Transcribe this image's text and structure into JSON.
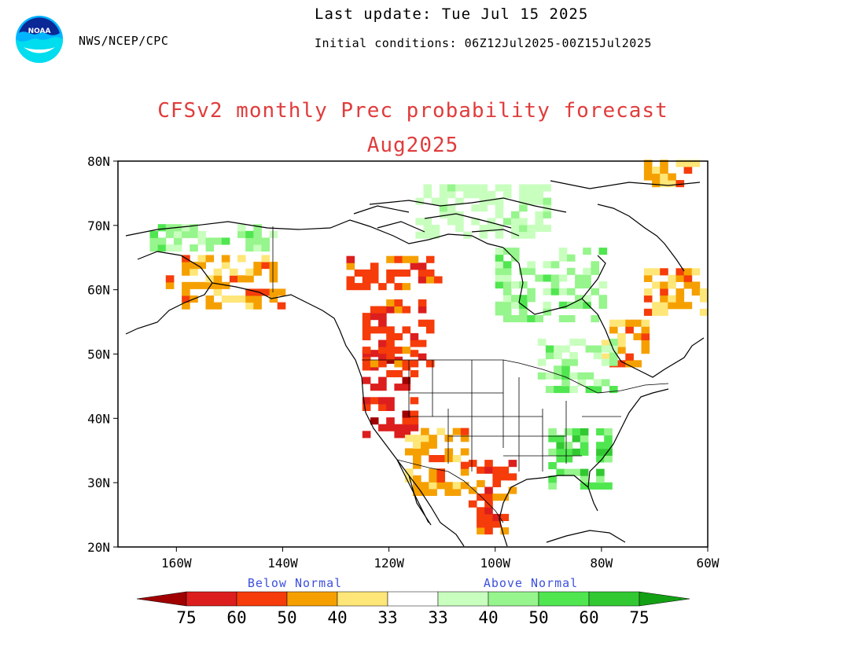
{
  "header": {
    "agency": "NWS/NCEP/CPC",
    "last_update": "Last update: Tue Jul 15 2025",
    "initial_conditions": "Initial conditions: 06Z12Jul2025-00Z15Jul2025",
    "logo_text": "NOAA"
  },
  "title": {
    "line1": "CFSv2 monthly Prec probability forecast",
    "line2": "Aug2025"
  },
  "axes": {
    "lat_labels": [
      "80N",
      "70N",
      "60N",
      "50N",
      "40N",
      "30N",
      "20N"
    ],
    "lat_values": [
      80,
      70,
      60,
      50,
      40,
      30,
      20
    ],
    "lon_labels": [
      "160W",
      "140W",
      "120W",
      "100W",
      "80W",
      "60W"
    ],
    "lon_values": [
      -160,
      -140,
      -120,
      -100,
      -80,
      -60
    ],
    "lon_range": [
      -171,
      -60
    ],
    "lat_range": [
      20,
      80
    ]
  },
  "legend": {
    "below_label": "Below Normal",
    "above_label": "Above Normal",
    "below_numbers": [
      "75",
      "60",
      "50",
      "40",
      "33"
    ],
    "above_numbers": [
      "33",
      "40",
      "50",
      "60",
      "75"
    ],
    "below_colors": [
      "#a00000",
      "#dc1e1e",
      "#f53c0a",
      "#f5a000",
      "#ffe678"
    ],
    "above_colors": [
      "#c8ffbe",
      "#96f58c",
      "#50e650",
      "#32c832",
      "#14a014"
    ],
    "neutral_color": "#ffffff"
  },
  "regions": [
    {
      "name": "Pacific NW / CA below",
      "lon": [
        -125,
        -115
      ],
      "lat": [
        37,
        50
      ],
      "level": -4
    },
    {
      "name": "Western Canada below",
      "lon": [
        -125,
        -112
      ],
      "lat": [
        48,
        58
      ],
      "level": -3
    },
    {
      "name": "Mackenzie below",
      "lon": [
        -128,
        -110
      ],
      "lat": [
        60,
        65
      ],
      "level": -3
    },
    {
      "name": "Alaska below",
      "lon": [
        -162,
        -140
      ],
      "lat": [
        57,
        65
      ],
      "level": -2
    },
    {
      "name": "Texas / Mexico below",
      "lon": [
        -105,
        -97
      ],
      "lat": [
        22,
        33
      ],
      "level": -3
    },
    {
      "name": "Southwest below",
      "lon": [
        -117,
        -105
      ],
      "lat": [
        28,
        38
      ],
      "level": -2
    },
    {
      "name": "Quebec below",
      "lon": [
        -80,
        -72
      ],
      "lat": [
        48,
        55
      ],
      "level": -2
    },
    {
      "name": "Labrador below",
      "lon": [
        -72,
        -60
      ],
      "lat": [
        56,
        63
      ],
      "level": -2
    },
    {
      "name": "Northern Alaska above",
      "lon": [
        -165,
        -142
      ],
      "lat": [
        66,
        70
      ],
      "level": 2
    },
    {
      "name": "Hudson Bay above",
      "lon": [
        -100,
        -80
      ],
      "lat": [
        55,
        66
      ],
      "level": 2
    },
    {
      "name": "Canadian Archipelago above",
      "lon": [
        -115,
        -90
      ],
      "lat": [
        68,
        76
      ],
      "level": 1
    },
    {
      "name": "Southeast US above",
      "lon": [
        -90,
        -78
      ],
      "lat": [
        29,
        38
      ],
      "level": 3
    },
    {
      "name": "Ontario above",
      "lon": [
        -92,
        -78
      ],
      "lat": [
        44,
        52
      ],
      "level": 2
    },
    {
      "name": "Greenland west below",
      "lon": [
        -72,
        -62
      ],
      "lat": [
        76,
        80
      ],
      "level": -2
    }
  ]
}
